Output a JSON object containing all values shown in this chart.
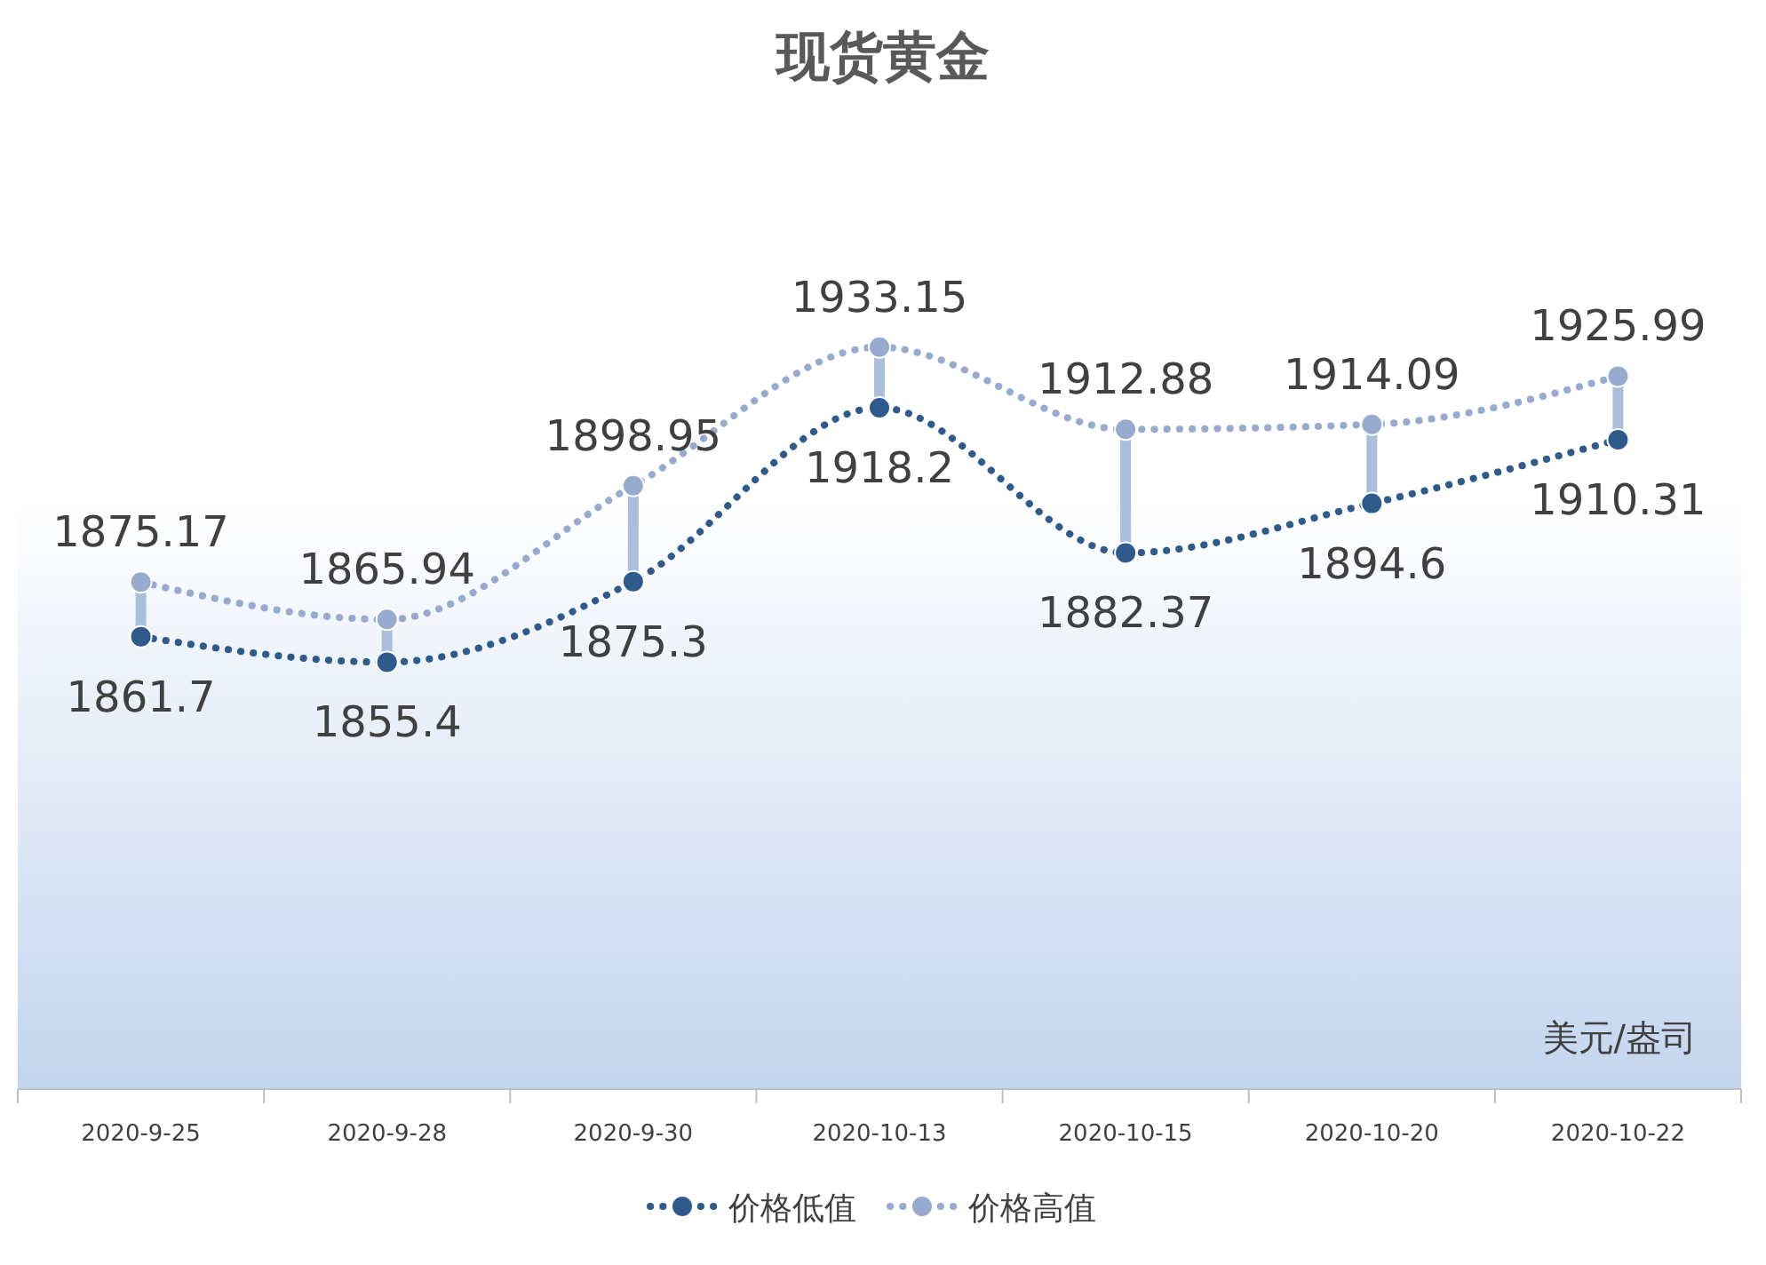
{
  "chart_data": {
    "type": "line",
    "title": "现货黄金",
    "annotations": [
      "美元/盎司"
    ],
    "categories": [
      "2020-9-25",
      "2020-9-28",
      "2020-9-30",
      "2020-10-13",
      "2020-10-15",
      "2020-10-20",
      "2020-10-22"
    ],
    "series": [
      {
        "name": "价格低值",
        "color": "#2f5b8c",
        "values": [
          1861.7,
          1855.4,
          1875.3,
          1918.2,
          1882.37,
          1894.6,
          1910.31
        ]
      },
      {
        "name": "价格高值",
        "color": "#97abcf",
        "values": [
          1875.17,
          1865.94,
          1898.95,
          1933.15,
          1912.88,
          1914.09,
          1925.99
        ]
      }
    ],
    "ylim": [
      1750,
      1975
    ],
    "tick_labels": "x",
    "data_labels": true,
    "legend": "bottom",
    "marker": "circle",
    "line_style": "dotted"
  }
}
